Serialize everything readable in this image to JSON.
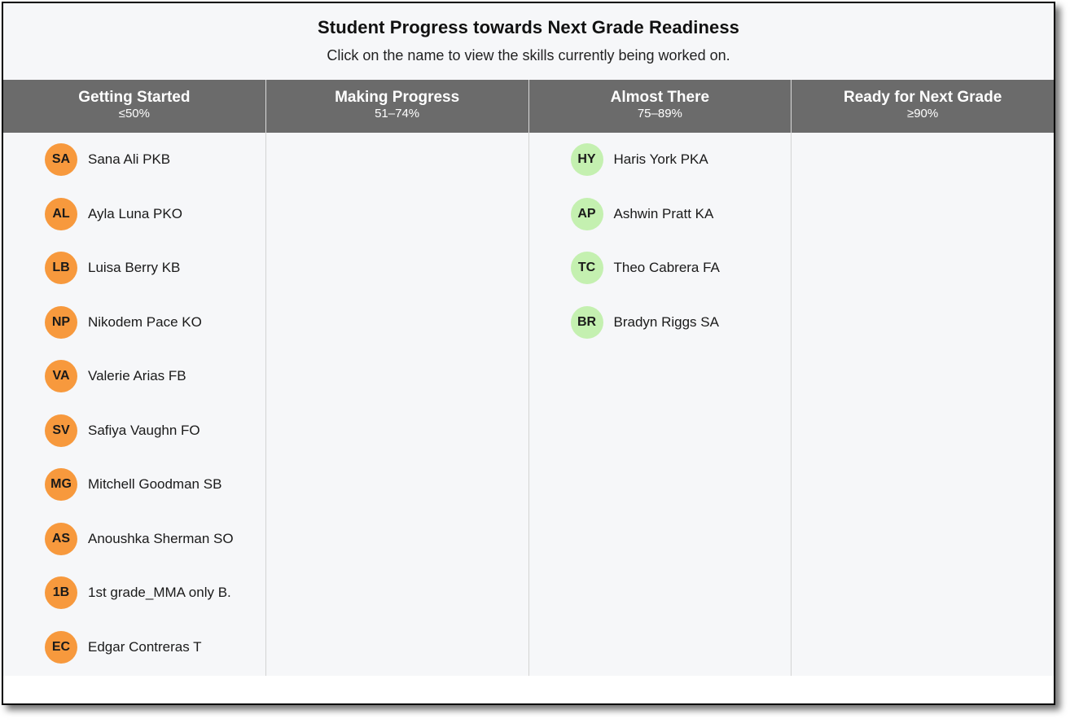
{
  "header": {
    "title": "Student Progress towards Next Grade Readiness",
    "subtitle": "Click on the name to view the skills currently being worked on."
  },
  "colors": {
    "getting_started": "#f7993d",
    "almost_there": "#c4f0b0"
  },
  "columns": [
    {
      "label": "Getting Started",
      "range": "≤50%",
      "students": [
        {
          "initials": "SA",
          "name": "Sana Ali PKB"
        },
        {
          "initials": "AL",
          "name": "Ayla Luna PKO"
        },
        {
          "initials": "LB",
          "name": "Luisa Berry KB"
        },
        {
          "initials": "NP",
          "name": "Nikodem Pace KO"
        },
        {
          "initials": "VA",
          "name": "Valerie Arias FB"
        },
        {
          "initials": "SV",
          "name": "Safiya Vaughn FO"
        },
        {
          "initials": "MG",
          "name": "Mitchell Goodman SB"
        },
        {
          "initials": "AS",
          "name": "Anoushka Sherman SO"
        },
        {
          "initials": "1B",
          "name": "1st grade_MMA only B."
        },
        {
          "initials": "EC",
          "name": "Edgar Contreras T"
        }
      ]
    },
    {
      "label": "Making Progress",
      "range": "51–74%",
      "students": []
    },
    {
      "label": "Almost There",
      "range": "75–89%",
      "students": [
        {
          "initials": "HY",
          "name": "Haris York PKA"
        },
        {
          "initials": "AP",
          "name": "Ashwin Pratt KA"
        },
        {
          "initials": "TC",
          "name": "Theo Cabrera FA"
        },
        {
          "initials": "BR",
          "name": "Bradyn Riggs SA"
        }
      ]
    },
    {
      "label": "Ready for Next Grade",
      "range": "≥90%",
      "students": []
    }
  ]
}
